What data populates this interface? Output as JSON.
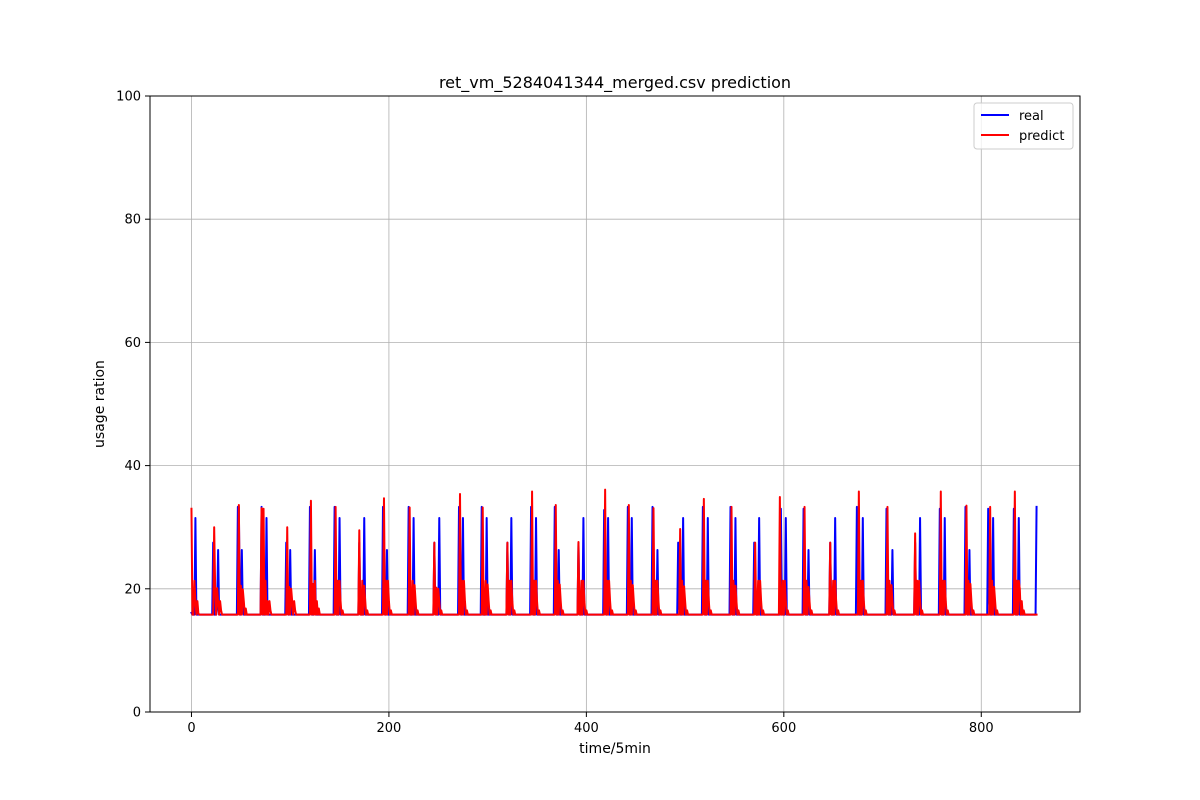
{
  "chart_data": {
    "type": "line",
    "title": "ret_vm_5284041344_merged.csv prediction",
    "xlabel": "time/5min",
    "ylabel": "usage ration",
    "xlim": [
      -42,
      900
    ],
    "ylim": [
      0,
      100
    ],
    "x_ticks": [
      0,
      200,
      400,
      600,
      800
    ],
    "y_ticks": [
      0,
      20,
      40,
      60,
      80,
      100
    ],
    "grid": true,
    "legend_position": "top-right",
    "x_count": 857,
    "series": [
      {
        "name": "real",
        "color": "#0000ff",
        "baseline": 15.8,
        "peaks": [
          [
            0,
            16.1
          ],
          [
            4,
            31.5
          ],
          [
            22,
            27.5
          ],
          [
            26,
            16.8
          ],
          [
            27,
            26.3
          ],
          [
            47,
            33.3
          ],
          [
            48,
            33.3
          ],
          [
            51,
            26.3
          ],
          [
            52,
            16.8
          ],
          [
            71,
            33.3
          ],
          [
            76,
            31.5
          ],
          [
            96,
            27.5
          ],
          [
            97,
            16.8
          ],
          [
            100,
            26.3
          ],
          [
            120,
            33.3
          ],
          [
            121,
            18.0
          ],
          [
            125,
            26.3
          ],
          [
            145,
            33.3
          ],
          [
            146,
            16.8
          ],
          [
            150,
            31.5
          ],
          [
            170,
            27.5
          ],
          [
            171,
            16.8
          ],
          [
            175,
            31.5
          ],
          [
            194,
            33.3
          ],
          [
            195,
            18.0
          ],
          [
            198,
            26.3
          ],
          [
            220,
            33.3
          ],
          [
            225,
            31.5
          ],
          [
            246,
            27.5
          ],
          [
            247,
            16.8
          ],
          [
            251,
            31.5
          ],
          [
            271,
            33.3
          ],
          [
            272,
            18.0
          ],
          [
            275,
            31.5
          ],
          [
            294,
            33.3
          ],
          [
            299,
            31.5
          ],
          [
            320,
            27.5
          ],
          [
            321,
            16.8
          ],
          [
            324,
            31.5
          ],
          [
            344,
            33.3
          ],
          [
            345,
            18.0
          ],
          [
            349,
            31.5
          ],
          [
            368,
            33.3
          ],
          [
            369,
            18.0
          ],
          [
            372,
            26.3
          ],
          [
            392,
            27.5
          ],
          [
            393,
            16.8
          ],
          [
            397,
            31.5
          ],
          [
            418,
            32.8
          ],
          [
            419,
            18.0
          ],
          [
            422,
            31.5
          ],
          [
            442,
            33.3
          ],
          [
            443,
            18.0
          ],
          [
            446,
            31.5
          ],
          [
            467,
            33.3
          ],
          [
            472,
            26.3
          ],
          [
            493,
            27.5
          ],
          [
            494,
            16.8
          ],
          [
            498,
            31.5
          ],
          [
            518,
            33.3
          ],
          [
            519,
            18.0
          ],
          [
            523,
            31.5
          ],
          [
            546,
            33.3
          ],
          [
            547,
            18.0
          ],
          [
            551,
            31.5
          ],
          [
            570,
            27.5
          ],
          [
            571,
            16.8
          ],
          [
            575,
            31.5
          ],
          [
            597,
            33.0
          ],
          [
            598,
            18.0
          ],
          [
            602,
            31.5
          ],
          [
            620,
            33.0
          ],
          [
            621,
            18.0
          ],
          [
            625,
            26.3
          ],
          [
            647,
            27.5
          ],
          [
            648,
            16.8
          ],
          [
            652,
            31.5
          ],
          [
            674,
            33.3
          ],
          [
            675,
            18.0
          ],
          [
            680,
            31.5
          ],
          [
            704,
            33.0
          ],
          [
            705,
            18.0
          ],
          [
            710,
            26.3
          ],
          [
            733,
            27.5
          ],
          [
            734,
            16.8
          ],
          [
            738,
            31.5
          ],
          [
            758,
            33.0
          ],
          [
            759,
            18.0
          ],
          [
            763,
            31.5
          ],
          [
            784,
            33.3
          ],
          [
            785,
            18.0
          ],
          [
            788,
            26.3
          ],
          [
            807,
            33.0
          ],
          [
            808,
            18.0
          ],
          [
            812,
            31.5
          ],
          [
            833,
            33.0
          ],
          [
            834,
            18.0
          ],
          [
            838,
            31.5
          ],
          [
            856,
            33.3
          ]
        ]
      },
      {
        "name": "predict",
        "color": "#ff0000",
        "baseline": 15.8,
        "peaks": [
          [
            0,
            33.0
          ],
          [
            3,
            21.3
          ],
          [
            4,
            18.0
          ],
          [
            6,
            18.0
          ],
          [
            7,
            16.0
          ],
          [
            23,
            30.0
          ],
          [
            24,
            20.2
          ],
          [
            26,
            20.1
          ],
          [
            27,
            18.0
          ],
          [
            29,
            18.0
          ],
          [
            30,
            16.5
          ],
          [
            48,
            33.6
          ],
          [
            50,
            20.5
          ],
          [
            52,
            19.9
          ],
          [
            53,
            18.0
          ],
          [
            55,
            16.8
          ],
          [
            71,
            33.1
          ],
          [
            73,
            33.0
          ],
          [
            75,
            21.3
          ],
          [
            77,
            18.0
          ],
          [
            79,
            18.0
          ],
          [
            80,
            16.5
          ],
          [
            97,
            30.0
          ],
          [
            99,
            20.3
          ],
          [
            101,
            20.0
          ],
          [
            102,
            18.0
          ],
          [
            104,
            18.0
          ],
          [
            105,
            16.5
          ],
          [
            121,
            34.3
          ],
          [
            123,
            20.8
          ],
          [
            125,
            21.3
          ],
          [
            127,
            18.0
          ],
          [
            129,
            16.8
          ],
          [
            146,
            33.3
          ],
          [
            148,
            21.3
          ],
          [
            150,
            21.3
          ],
          [
            151,
            18.0
          ],
          [
            153,
            16.5
          ],
          [
            170,
            29.5
          ],
          [
            173,
            21.3
          ],
          [
            175,
            20.5
          ],
          [
            176,
            18.0
          ],
          [
            178,
            16.5
          ],
          [
            195,
            34.7
          ],
          [
            197,
            21.3
          ],
          [
            199,
            21.3
          ],
          [
            200,
            18.0
          ],
          [
            202,
            16.5
          ],
          [
            221,
            33.2
          ],
          [
            224,
            21.3
          ],
          [
            226,
            20.6
          ],
          [
            227,
            18.0
          ],
          [
            229,
            16.5
          ],
          [
            246,
            27.5
          ],
          [
            248,
            20.2
          ],
          [
            250,
            20.0
          ],
          [
            251,
            18.0
          ],
          [
            253,
            16.5
          ],
          [
            272,
            35.4
          ],
          [
            274,
            21.3
          ],
          [
            276,
            21.3
          ],
          [
            277,
            18.0
          ],
          [
            279,
            16.5
          ],
          [
            295,
            33.2
          ],
          [
            298,
            21.3
          ],
          [
            300,
            20.7
          ],
          [
            301,
            18.0
          ],
          [
            303,
            16.5
          ],
          [
            320,
            27.5
          ],
          [
            322,
            21.3
          ],
          [
            324,
            21.3
          ],
          [
            325,
            18.0
          ],
          [
            327,
            16.5
          ],
          [
            345,
            35.8
          ],
          [
            347,
            21.3
          ],
          [
            349,
            21.3
          ],
          [
            350,
            18.0
          ],
          [
            352,
            16.5
          ],
          [
            369,
            33.6
          ],
          [
            371,
            21.3
          ],
          [
            373,
            20.7
          ],
          [
            374,
            18.0
          ],
          [
            376,
            16.5
          ],
          [
            392,
            27.6
          ],
          [
            395,
            21.3
          ],
          [
            397,
            21.3
          ],
          [
            398,
            18.0
          ],
          [
            400,
            16.5
          ],
          [
            419,
            36.1
          ],
          [
            421,
            21.3
          ],
          [
            423,
            21.3
          ],
          [
            424,
            18.0
          ],
          [
            426,
            16.5
          ],
          [
            443,
            33.6
          ],
          [
            445,
            21.3
          ],
          [
            447,
            20.6
          ],
          [
            448,
            18.0
          ],
          [
            450,
            16.5
          ],
          [
            468,
            33.1
          ],
          [
            470,
            21.3
          ],
          [
            472,
            21.3
          ],
          [
            473,
            18.0
          ],
          [
            475,
            16.5
          ],
          [
            495,
            29.7
          ],
          [
            497,
            21.3
          ],
          [
            499,
            20.4
          ],
          [
            500,
            18.0
          ],
          [
            502,
            16.5
          ],
          [
            519,
            34.6
          ],
          [
            521,
            21.3
          ],
          [
            523,
            21.3
          ],
          [
            524,
            18.0
          ],
          [
            526,
            16.5
          ],
          [
            547,
            33.3
          ],
          [
            549,
            21.3
          ],
          [
            551,
            20.5
          ],
          [
            552,
            18.0
          ],
          [
            554,
            16.5
          ],
          [
            571,
            27.5
          ],
          [
            574,
            21.3
          ],
          [
            576,
            21.3
          ],
          [
            577,
            18.0
          ],
          [
            579,
            16.5
          ],
          [
            596,
            34.9
          ],
          [
            599,
            21.3
          ],
          [
            601,
            21.3
          ],
          [
            602,
            18.0
          ],
          [
            604,
            16.5
          ],
          [
            621,
            33.3
          ],
          [
            623,
            21.3
          ],
          [
            625,
            20.3
          ],
          [
            626,
            18.0
          ],
          [
            628,
            16.5
          ],
          [
            647,
            27.5
          ],
          [
            650,
            21.3
          ],
          [
            652,
            21.3
          ],
          [
            653,
            18.0
          ],
          [
            655,
            16.5
          ],
          [
            676,
            35.8
          ],
          [
            678,
            21.3
          ],
          [
            680,
            21.3
          ],
          [
            681,
            18.0
          ],
          [
            683,
            16.5
          ],
          [
            705,
            33.3
          ],
          [
            707,
            21.3
          ],
          [
            709,
            20.6
          ],
          [
            710,
            18.0
          ],
          [
            712,
            16.5
          ],
          [
            733,
            29.0
          ],
          [
            735,
            21.3
          ],
          [
            737,
            21.3
          ],
          [
            738,
            18.0
          ],
          [
            740,
            16.5
          ],
          [
            759,
            35.8
          ],
          [
            761,
            21.3
          ],
          [
            763,
            21.3
          ],
          [
            764,
            18.0
          ],
          [
            766,
            16.5
          ],
          [
            785,
            33.5
          ],
          [
            787,
            21.3
          ],
          [
            789,
            20.8
          ],
          [
            790,
            18.0
          ],
          [
            792,
            16.5
          ],
          [
            809,
            33.3
          ],
          [
            811,
            21.3
          ],
          [
            813,
            20.3
          ],
          [
            814,
            18.0
          ],
          [
            816,
            16.5
          ],
          [
            834,
            35.8
          ],
          [
            836,
            21.3
          ],
          [
            838,
            21.3
          ],
          [
            839,
            20.0
          ],
          [
            841,
            18.0
          ],
          [
            843,
            16.5
          ]
        ]
      }
    ]
  }
}
